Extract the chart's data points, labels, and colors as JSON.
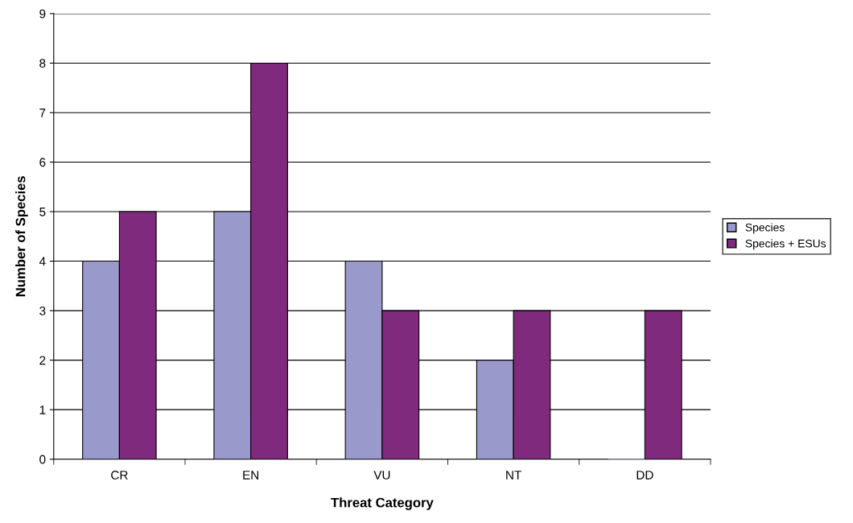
{
  "chart_data": {
    "type": "bar",
    "xlabel": "Threat Category",
    "ylabel": "Number of Species",
    "categories": [
      "CR",
      "EN",
      "VU",
      "NT",
      "DD"
    ],
    "series": [
      {
        "name": "Species",
        "color": "#9999cc",
        "values": [
          4,
          5,
          4,
          2,
          0
        ]
      },
      {
        "name": "Species + ESUs",
        "color": "#7f2a7c",
        "values": [
          5,
          8,
          3,
          3,
          3
        ]
      }
    ],
    "ylim": [
      0,
      9
    ],
    "yticks": [
      0,
      1,
      2,
      3,
      4,
      5,
      6,
      7,
      8,
      9
    ],
    "grid": "y",
    "legend": "right"
  }
}
